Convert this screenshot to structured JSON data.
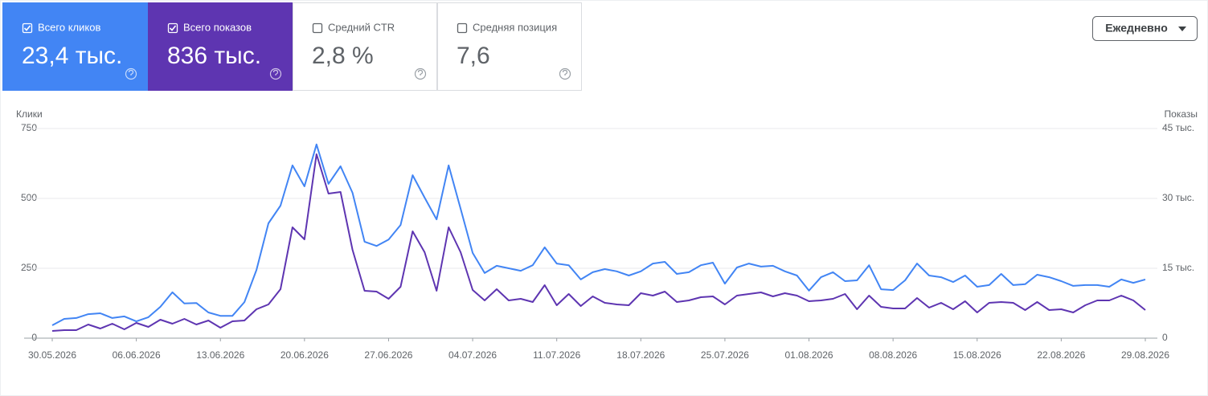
{
  "metrics": [
    {
      "label": "Всего кликов",
      "value": "23,4 тыс.",
      "selected": true,
      "color": "#4285f4"
    },
    {
      "label": "Всего показов",
      "value": "836 тыс.",
      "selected": true,
      "color": "#5e35b1"
    },
    {
      "label": "Средний CTR",
      "value": "2,8 %",
      "selected": false,
      "color": "#ffffff"
    },
    {
      "label": "Средняя позиция",
      "value": "7,6",
      "selected": false,
      "color": "#ffffff"
    }
  ],
  "period_selector": "Ежедневно",
  "chart_data": {
    "type": "line",
    "categories": [
      "30.05.2026",
      null,
      null,
      null,
      null,
      null,
      null,
      "06.06.2026",
      null,
      null,
      null,
      null,
      null,
      null,
      "13.06.2026",
      null,
      null,
      null,
      null,
      null,
      null,
      "20.06.2026",
      null,
      null,
      null,
      null,
      null,
      null,
      "27.06.2026",
      null,
      null,
      null,
      null,
      null,
      null,
      "04.07.2026",
      null,
      null,
      null,
      null,
      null,
      null,
      "11.07.2026",
      null,
      null,
      null,
      null,
      null,
      null,
      "18.07.2026",
      null,
      null,
      null,
      null,
      null,
      null,
      "25.07.2026",
      null,
      null,
      null,
      null,
      null,
      null,
      "01.08.2026",
      null,
      null,
      null,
      null,
      null,
      null,
      "08.08.2026",
      null,
      null,
      null,
      null,
      null,
      null,
      "15.08.2026",
      null,
      null,
      null,
      null,
      null,
      null,
      "22.08.2026",
      null,
      null,
      null,
      null,
      null,
      null,
      "29.08.2026"
    ],
    "series": [
      {
        "name": "Клики",
        "color": "#4285f4",
        "values": [
          46,
          69,
          72,
          86,
          89,
          72,
          78,
          60,
          75,
          112,
          164,
          124,
          126,
          92,
          80,
          80,
          129,
          244,
          411,
          474,
          618,
          543,
          693,
          552,
          615,
          520,
          345,
          330,
          353,
          405,
          583,
          503,
          425,
          618,
          463,
          305,
          233,
          259,
          250,
          241,
          261,
          325,
          267,
          261,
          210,
          236,
          247,
          239,
          224,
          239,
          267,
          273,
          230,
          236,
          261,
          270,
          195,
          253,
          267,
          256,
          259,
          239,
          224,
          170,
          218,
          236,
          204,
          207,
          261,
          175,
          172,
          207,
          267,
          224,
          218,
          201,
          224,
          184,
          190,
          230,
          190,
          193,
          227,
          218,
          204,
          187,
          190,
          190,
          184,
          210,
          198,
          210
        ]
      },
      {
        "name": "Показы",
        "color": "#5e35b1",
        "axis": "y2",
        "values": [
          1550,
          1720,
          1720,
          2930,
          2070,
          3100,
          1900,
          3280,
          2410,
          3970,
          3100,
          4140,
          2930,
          3790,
          2240,
          3620,
          3790,
          6210,
          7240,
          10520,
          23790,
          21210,
          39480,
          31030,
          31380,
          18970,
          10170,
          10000,
          8450,
          11030,
          22930,
          18450,
          10170,
          23790,
          18450,
          10340,
          8100,
          10520,
          8100,
          8450,
          7760,
          11380,
          7070,
          9480,
          6900,
          8970,
          7590,
          7240,
          7070,
          9650,
          9140,
          10000,
          7760,
          8100,
          8790,
          8970,
          7240,
          9140,
          9480,
          9830,
          8970,
          9650,
          9140,
          7930,
          8100,
          8450,
          9480,
          6210,
          9140,
          6720,
          6380,
          6380,
          8620,
          6550,
          7590,
          6210,
          7930,
          5520,
          7590,
          7760,
          7590,
          6030,
          7760,
          6030,
          6210,
          5520,
          7070,
          8100,
          8100,
          9140,
          8100,
          6030
        ]
      }
    ],
    "ylim": [
      0,
      750
    ],
    "yticks": [
      0,
      250,
      500,
      750
    ],
    "y2lim": [
      0,
      45000
    ],
    "y2ticks": [
      0,
      {
        "value": 15000,
        "label": "15 тыс."
      },
      {
        "value": 30000,
        "label": "30 тыс."
      },
      {
        "value": 45000,
        "label": "45 тыс."
      }
    ],
    "grid": true
  }
}
